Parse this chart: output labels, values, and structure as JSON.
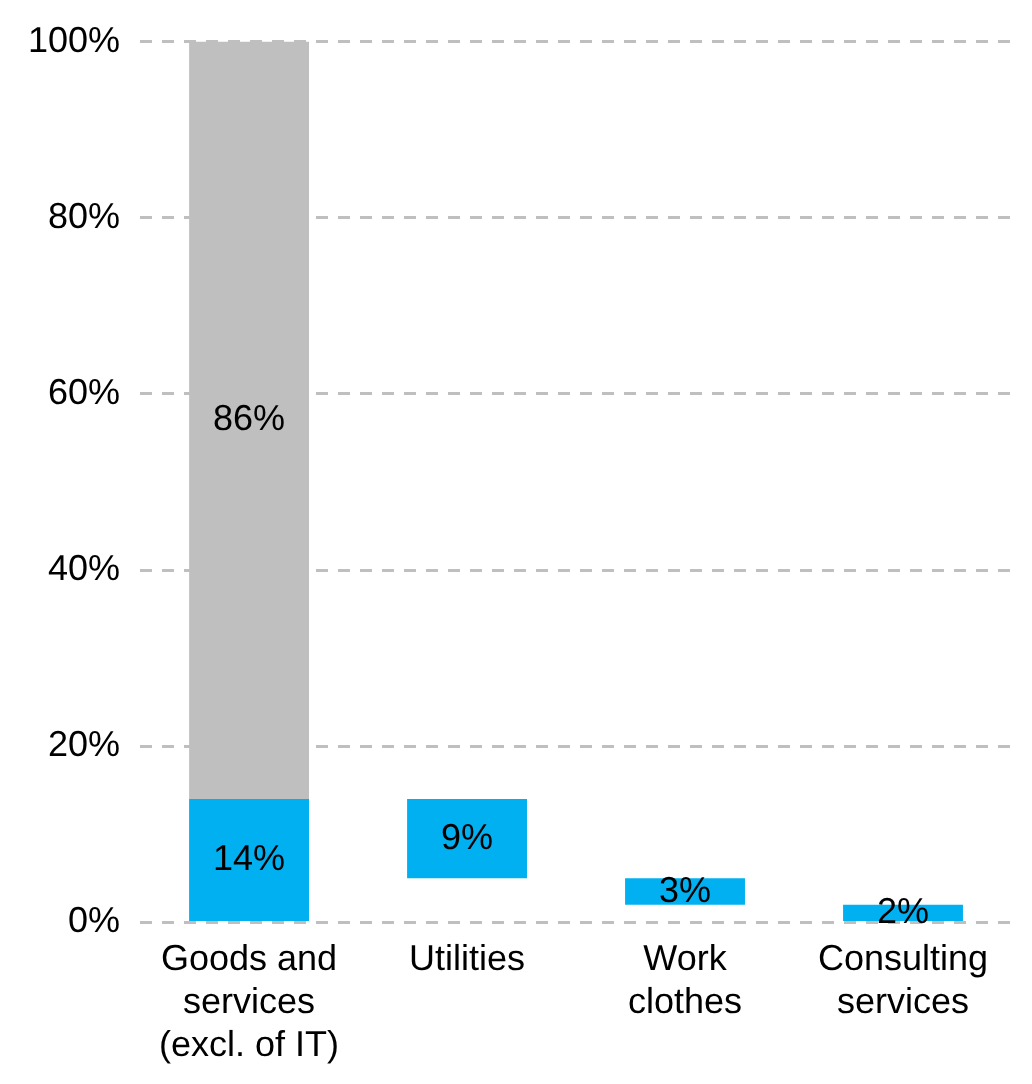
{
  "chart_data": {
    "type": "bar",
    "categories": [
      "Goods and services (excl. of IT)",
      "Utilities",
      "Work clothes",
      "Consulting services"
    ],
    "series": [
      {
        "color": "#00b0f0",
        "values": [
          14,
          9,
          3,
          2
        ],
        "base": [
          0,
          5,
          2,
          0
        ],
        "value_labels": [
          "14%",
          "9%",
          "3%",
          "2%"
        ]
      },
      {
        "color": "#bfbfbf",
        "values": [
          86,
          null,
          null,
          null
        ],
        "base": [
          14,
          null,
          null,
          null
        ],
        "value_labels": [
          "86%",
          null,
          null,
          null
        ]
      }
    ],
    "ylim": [
      0,
      100
    ],
    "yticks": [
      {
        "value": 0,
        "label": "0%"
      },
      {
        "value": 20,
        "label": "20%"
      },
      {
        "value": 40,
        "label": "40%"
      },
      {
        "value": 60,
        "label": "60%"
      },
      {
        "value": 80,
        "label": "80%"
      },
      {
        "value": 100,
        "label": "100%"
      }
    ],
    "grid": "y"
  }
}
